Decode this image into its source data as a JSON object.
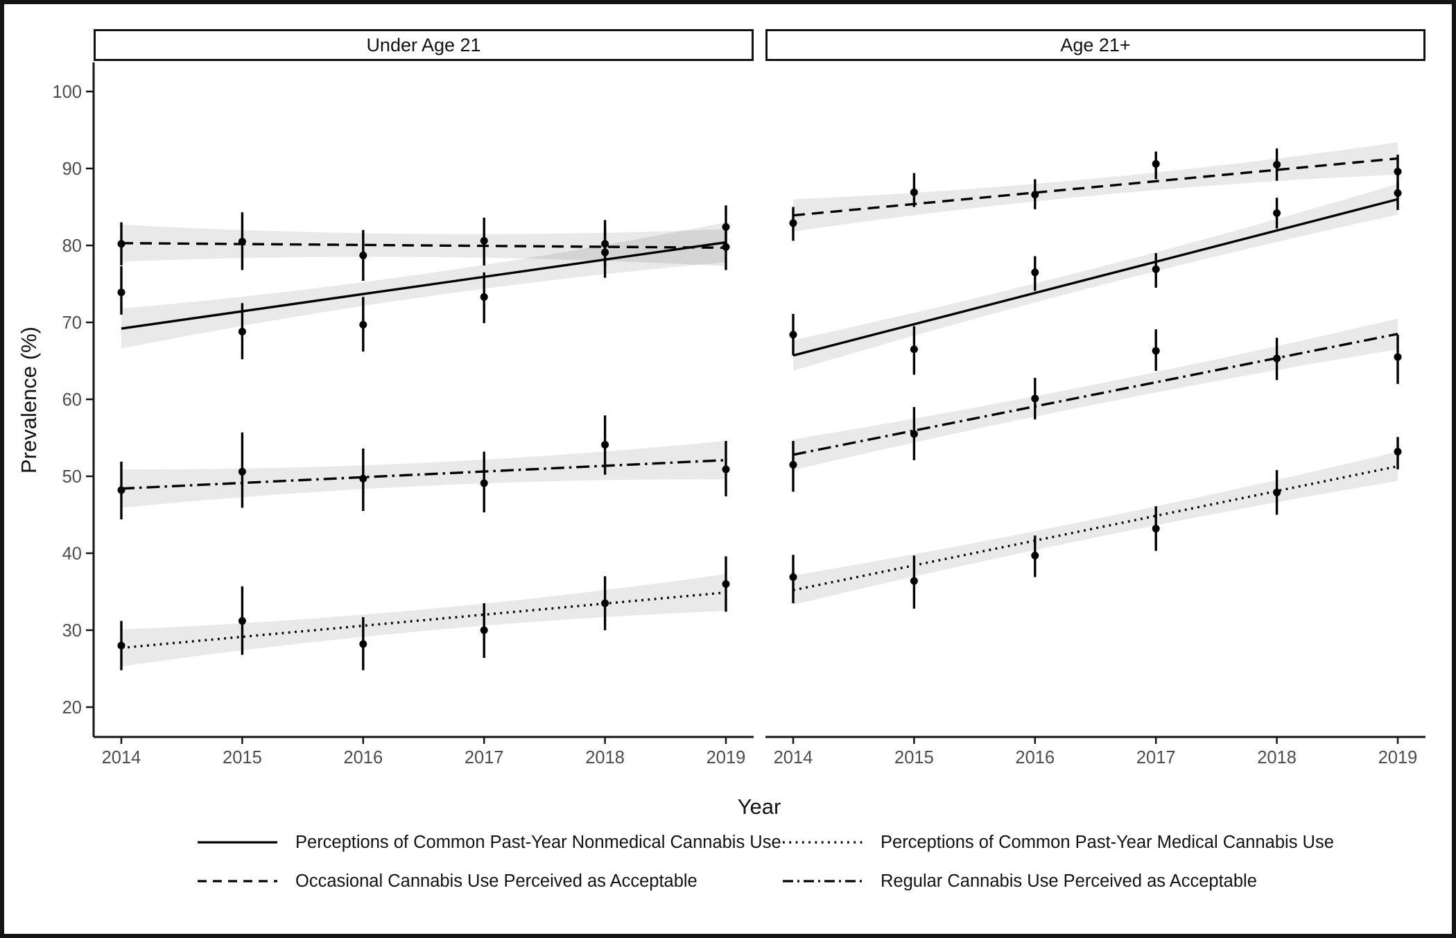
{
  "chart_data": {
    "type": "line",
    "title": "",
    "xlabel": "Year",
    "ylabel": "Prevalence (%)",
    "x": [
      2014,
      2015,
      2016,
      2017,
      2018,
      2019
    ],
    "y_ticks": [
      20,
      30,
      40,
      50,
      60,
      70,
      80,
      90,
      100
    ],
    "ylim": [
      17,
      104
    ],
    "grid": "off",
    "points": "black dots with vertical 95% CI error bars",
    "bands": "gray linear-fit confidence ribbons",
    "facets": [
      {
        "label": "Under Age 21",
        "series": [
          {
            "name": "Perceptions of Common Past-Year Nonmedical Cannabis Use",
            "linestyle": "solid",
            "values": [
              73.9,
              68.8,
              69.7,
              73.3,
              79.1,
              82.4
            ],
            "ci_low": [
              71.0,
              65.2,
              66.2,
              69.9,
              75.8,
              79.3
            ],
            "ci_high": [
              77.3,
              72.5,
              73.3,
              76.5,
              82.3,
              85.2
            ],
            "fit": [
              69.2,
              80.4
            ],
            "band": {
              "mid": 1.5,
              "end": 2.6
            }
          },
          {
            "name": "Perceptions of Common Past-Year Medical Cannabis Use",
            "linestyle": "dotted",
            "values": [
              28.0,
              31.2,
              28.2,
              30.0,
              33.5,
              36.0
            ],
            "ci_low": [
              24.8,
              26.8,
              24.8,
              26.4,
              30.0,
              32.4
            ],
            "ci_high": [
              31.2,
              35.7,
              31.7,
              33.5,
              37.0,
              39.6
            ],
            "fit": [
              27.7,
              34.9
            ],
            "band": {
              "mid": 1.4,
              "end": 2.4
            }
          },
          {
            "name": "Occasional Cannabis Use Perceived as Acceptable",
            "linestyle": "dashed",
            "values": [
              80.2,
              80.5,
              78.7,
              80.6,
              80.2,
              79.8
            ],
            "ci_low": [
              77.4,
              76.8,
              75.4,
              77.4,
              77.2,
              76.8
            ],
            "ci_high": [
              83.0,
              84.3,
              82.0,
              83.6,
              83.3,
              82.7
            ],
            "fit": [
              80.3,
              79.7
            ],
            "band": {
              "mid": 1.5,
              "end": 2.4
            }
          },
          {
            "name": "Regular Cannabis Use Perceived as Acceptable",
            "linestyle": "dashdot",
            "values": [
              48.2,
              50.6,
              49.7,
              49.1,
              54.1,
              50.9
            ],
            "ci_low": [
              44.4,
              45.9,
              45.5,
              45.3,
              50.2,
              47.4
            ],
            "ci_high": [
              51.9,
              55.7,
              53.6,
              53.2,
              57.9,
              54.6
            ],
            "fit": [
              48.4,
              52.1
            ],
            "band": {
              "mid": 1.5,
              "end": 2.5
            }
          }
        ]
      },
      {
        "label": "Age 21+",
        "series": [
          {
            "name": "Perceptions of Common Past-Year Nonmedical Cannabis Use",
            "linestyle": "solid",
            "values": [
              68.4,
              66.5,
              76.5,
              76.9,
              84.2,
              86.8
            ],
            "ci_low": [
              65.7,
              63.2,
              74.1,
              74.5,
              82.2,
              84.6
            ],
            "ci_high": [
              71.1,
              69.5,
              78.6,
              79.0,
              86.2,
              88.3
            ],
            "fit": [
              65.7,
              86.0
            ],
            "band": {
              "mid": 1.2,
              "end": 2.0
            }
          },
          {
            "name": "Perceptions of Common Past-Year Medical Cannabis Use",
            "linestyle": "dotted",
            "values": [
              36.9,
              36.4,
              39.7,
              43.2,
              47.9,
              53.2
            ],
            "ci_low": [
              33.5,
              32.8,
              36.9,
              40.3,
              45.0,
              50.9
            ],
            "ci_high": [
              39.8,
              39.7,
              42.3,
              46.1,
              50.8,
              55.1
            ],
            "fit": [
              35.2,
              51.3
            ],
            "band": {
              "mid": 1.2,
              "end": 1.9
            }
          },
          {
            "name": "Occasional Cannabis Use Perceived as Acceptable",
            "linestyle": "dashed",
            "values": [
              82.9,
              86.9,
              86.6,
              90.6,
              90.5,
              89.6
            ],
            "ci_low": [
              80.6,
              85.0,
              84.7,
              88.6,
              88.4,
              87.2
            ],
            "ci_high": [
              85.0,
              89.4,
              88.6,
              92.2,
              92.6,
              91.8
            ],
            "fit": [
              83.9,
              91.3
            ],
            "band": {
              "mid": 1.1,
              "end": 2.1
            }
          },
          {
            "name": "Regular Cannabis Use Perceived as Acceptable",
            "linestyle": "dashdot",
            "values": [
              51.5,
              55.5,
              60.1,
              66.3,
              65.3,
              65.5
            ],
            "ci_low": [
              48.0,
              52.1,
              57.4,
              63.7,
              62.5,
              62.0
            ],
            "ci_high": [
              54.6,
              59.0,
              62.8,
              69.1,
              68.0,
              68.4
            ],
            "fit": [
              52.8,
              68.5
            ],
            "band": {
              "mid": 1.3,
              "end": 2.0
            }
          }
        ]
      }
    ],
    "legend": {
      "position": "bottom",
      "items": [
        {
          "label": "Perceptions of Common Past-Year Nonmedical Cannabis Use",
          "linestyle": "solid"
        },
        {
          "label": "Perceptions of Common Past-Year Medical Cannabis Use",
          "linestyle": "dotted"
        },
        {
          "label": "Occasional Cannabis Use Perceived as Acceptable",
          "linestyle": "dashed"
        },
        {
          "label": "Regular Cannabis Use Perceived as Acceptable",
          "linestyle": "dashdot"
        }
      ]
    },
    "colors": {
      "series": "#000000",
      "band": "#e9e9e9",
      "tick_text": "#4d4d4d",
      "axis": "#141414"
    }
  }
}
